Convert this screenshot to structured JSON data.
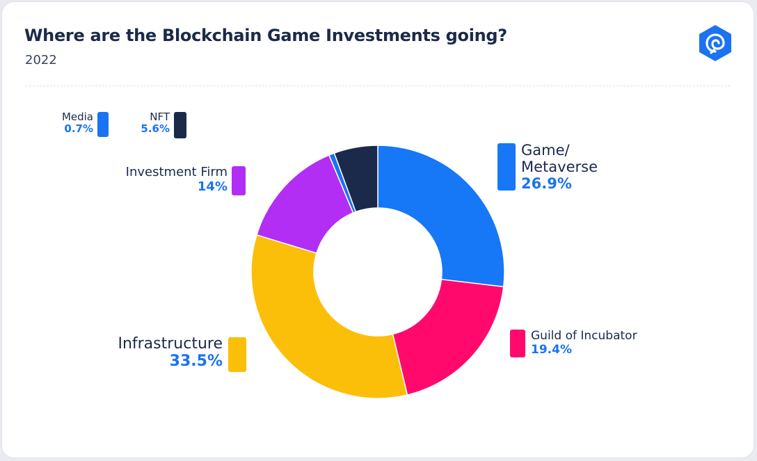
{
  "header": {
    "title": "Where are the Blockchain Game Investments going?",
    "subtitle": "2022"
  },
  "logo": {
    "icon": "spiral-logo-icon",
    "color": "#1a73f0"
  },
  "chart_data": {
    "type": "pie",
    "variant": "donut",
    "title": "Where are the Blockchain Game Investments going?",
    "subtitle": "2022",
    "unit": "%",
    "slices": [
      {
        "label": "Game/\nMetaverse",
        "value": 26.9,
        "display": "26.9%",
        "color": "#1677f7"
      },
      {
        "label": "Guild of Incubator",
        "value": 19.4,
        "display": "19.4%",
        "color": "#ff0a6c"
      },
      {
        "label": "Infrastructure",
        "value": 33.5,
        "display": "33.5%",
        "color": "#fbbf0a"
      },
      {
        "label": "Investment Firm",
        "value": 14,
        "display": "14%",
        "color": "#b22ef5"
      },
      {
        "label": "Media",
        "value": 0.7,
        "display": "0.7%",
        "color": "#1a73f0"
      },
      {
        "label": "NFT",
        "value": 5.6,
        "display": "5.6%",
        "color": "#1b2a4a"
      }
    ]
  }
}
